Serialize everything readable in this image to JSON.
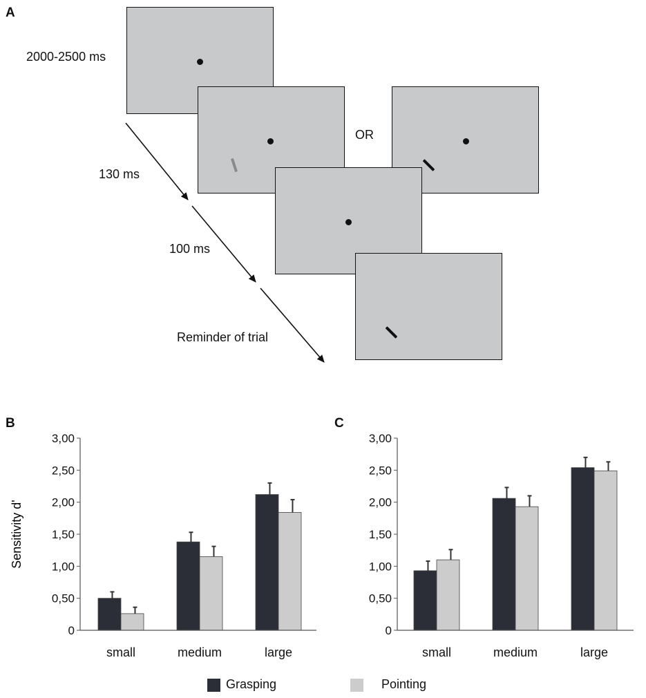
{
  "panel_a": {
    "letter": "A",
    "timing_labels": [
      "2000-2500 ms",
      "130 ms",
      "100 ms",
      "Reminder of trial"
    ],
    "or_label": "OR",
    "colors": {
      "screen": "#c8c9cb",
      "target_gray": "#8a8a8a",
      "target_black": "#111111"
    }
  },
  "chart_data": [
    {
      "panel": "B",
      "type": "bar",
      "categories": [
        "small",
        "medium",
        "large"
      ],
      "series": [
        {
          "name": "Grasping",
          "values": [
            0.5,
            1.38,
            2.12
          ],
          "errors": [
            0.1,
            0.15,
            0.18
          ]
        },
        {
          "name": "Pointing",
          "values": [
            0.26,
            1.15,
            1.84
          ],
          "errors": [
            0.1,
            0.16,
            0.2
          ]
        }
      ],
      "ylabel": "Sensitivity d'",
      "ylim": [
        0,
        3
      ],
      "yticks": [
        "0",
        "0,50",
        "1,00",
        "1,50",
        "2,00",
        "2,50",
        "3,00"
      ],
      "grid": false
    },
    {
      "panel": "C",
      "type": "bar",
      "categories": [
        "small",
        "medium",
        "large"
      ],
      "series": [
        {
          "name": "Grasping",
          "values": [
            0.93,
            2.06,
            2.54
          ],
          "errors": [
            0.15,
            0.17,
            0.16
          ]
        },
        {
          "name": "Pointing",
          "values": [
            1.1,
            1.93,
            2.49
          ],
          "errors": [
            0.16,
            0.17,
            0.14
          ]
        }
      ],
      "ylabel": "",
      "ylim": [
        0,
        3
      ],
      "yticks": [
        "0",
        "0,50",
        "1,00",
        "1,50",
        "2,00",
        "2,50",
        "3,00"
      ],
      "grid": false
    }
  ],
  "legend": {
    "items": [
      {
        "label": "Grasping",
        "color": "#2b2e36"
      },
      {
        "label": "Pointing",
        "color": "#cccccc"
      }
    ],
    "placement": "bottom"
  }
}
